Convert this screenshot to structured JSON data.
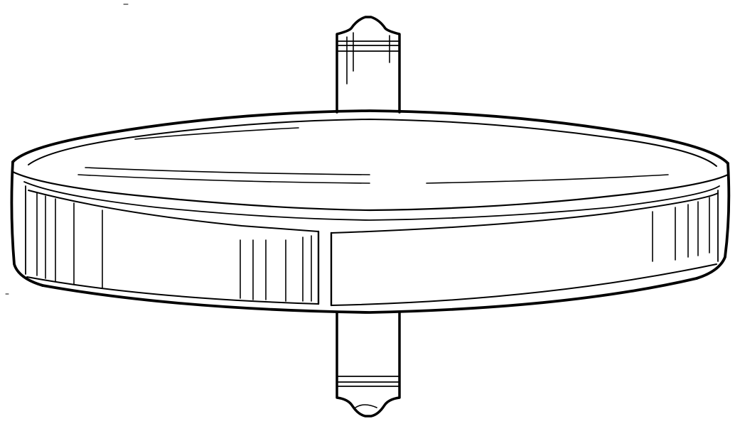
{
  "figure": {
    "subject": "",
    "colors": {
      "stroke": "#000000",
      "background": "#ffffff"
    }
  }
}
